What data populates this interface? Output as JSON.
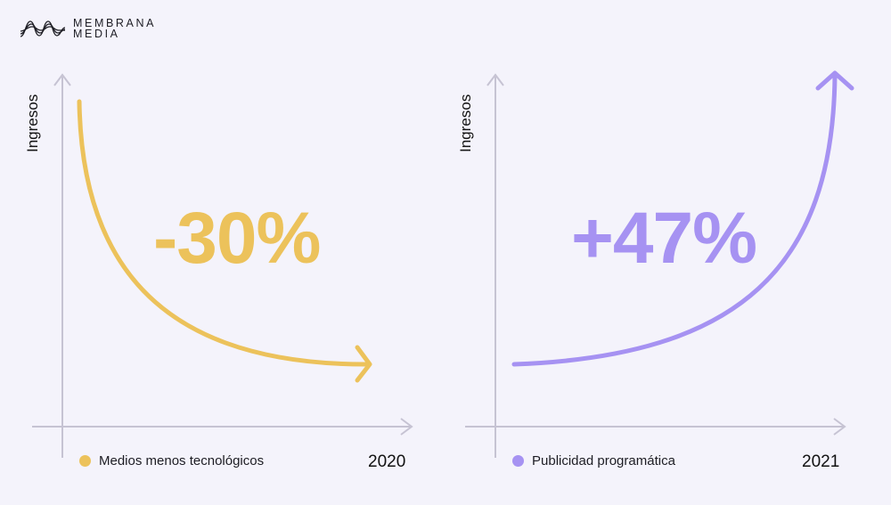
{
  "logo": {
    "line1": "MEMBRANA",
    "line2": "MEDIA"
  },
  "colors": {
    "yellow": "#ecc25b",
    "purple": "#a692f2",
    "axis": "#c6c3d3"
  },
  "chart_data": [
    {
      "type": "line",
      "ylabel": "Ingresos",
      "annotation": "-30%",
      "legend": "Medios menos tecnológicos",
      "period": "2020",
      "trend": "decreasing",
      "change_percent": -30
    },
    {
      "type": "line",
      "ylabel": "Ingresos",
      "annotation": "+47%",
      "legend": "Publicidad programática",
      "period": "2021",
      "trend": "increasing",
      "change_percent": 47
    }
  ]
}
